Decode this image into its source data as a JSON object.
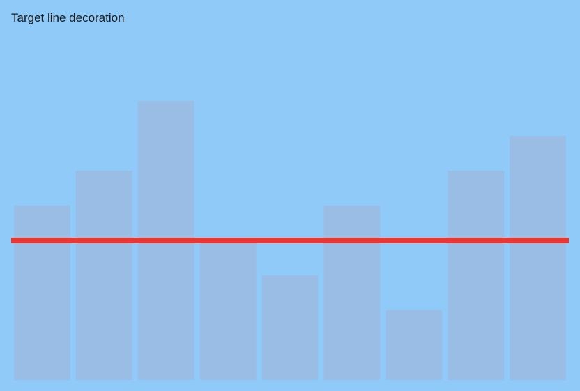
{
  "chart_data": {
    "type": "bar",
    "title": "Target line decoration",
    "values": [
      5,
      6,
      8,
      4,
      3,
      5,
      2,
      6,
      7
    ],
    "ylim": [
      0,
      10
    ],
    "target": 4,
    "grid": false,
    "colors": {
      "background": "#90CAF9",
      "bar": "#9ABDE5",
      "target_line": "#E53935"
    }
  }
}
